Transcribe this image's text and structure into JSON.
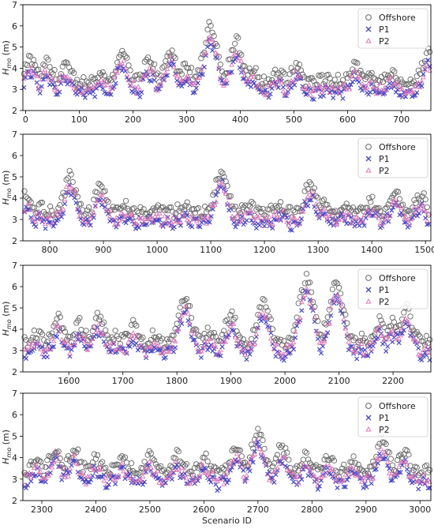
{
  "chart_data": [
    {
      "type": "scatter",
      "xlim": [
        -5,
        755
      ],
      "ylim": [
        2,
        7
      ],
      "xticks": [
        0,
        100,
        200,
        300,
        400,
        500,
        600,
        700
      ],
      "yticks": [
        2,
        3,
        4,
        5,
        6,
        7
      ],
      "ylabel": "H_mo (m)",
      "xlabel": "",
      "legend_position": "top-right",
      "grid": false,
      "peaks": [
        [
          10,
          4.4
        ],
        [
          40,
          4.2
        ],
        [
          75,
          4.1
        ],
        [
          140,
          3.7
        ],
        [
          180,
          4.7
        ],
        [
          230,
          4.3
        ],
        [
          270,
          4.8
        ],
        [
          300,
          4.0
        ],
        [
          345,
          5.9
        ],
        [
          392,
          5.2
        ],
        [
          420,
          3.9
        ],
        [
          470,
          3.8
        ],
        [
          505,
          4.1
        ],
        [
          560,
          3.5
        ],
        [
          615,
          4.1
        ],
        [
          640,
          3.6
        ],
        [
          680,
          3.7
        ],
        [
          750,
          4.7
        ]
      ]
    },
    {
      "type": "scatter",
      "xlim": [
        750,
        1510
      ],
      "ylim": [
        2,
        7
      ],
      "xticks": [
        800,
        900,
        1000,
        1100,
        1200,
        1300,
        1400,
        1500
      ],
      "yticks": [
        2,
        3,
        4,
        5,
        6,
        7
      ],
      "ylabel": "H_mo (m)",
      "xlabel": "",
      "legend_position": "top-right",
      "grid": false,
      "peaks": [
        [
          755,
          4.1
        ],
        [
          780,
          3.6
        ],
        [
          838,
          5.0
        ],
        [
          895,
          4.5
        ],
        [
          940,
          3.6
        ],
        [
          1000,
          3.5
        ],
        [
          1050,
          3.6
        ],
        [
          1120,
          5.2
        ],
        [
          1170,
          3.7
        ],
        [
          1230,
          3.7
        ],
        [
          1285,
          4.6
        ],
        [
          1310,
          3.8
        ],
        [
          1350,
          3.6
        ],
        [
          1400,
          3.8
        ],
        [
          1445,
          4.2
        ],
        [
          1490,
          4.1
        ]
      ]
    },
    {
      "type": "scatter",
      "xlim": [
        1515,
        2270
      ],
      "ylim": [
        2,
        7
      ],
      "xticks": [
        1600,
        1700,
        1800,
        1900,
        2000,
        2100,
        2200
      ],
      "yticks": [
        2,
        3,
        4,
        5,
        6,
        7
      ],
      "ylabel": "H_mo (m)",
      "xlabel": "",
      "legend_position": "top-right",
      "grid": false,
      "peaks": [
        [
          1540,
          3.8
        ],
        [
          1580,
          4.4
        ],
        [
          1620,
          4.2
        ],
        [
          1655,
          4.6
        ],
        [
          1690,
          3.6
        ],
        [
          1720,
          4.1
        ],
        [
          1760,
          3.7
        ],
        [
          1815,
          5.4
        ],
        [
          1860,
          3.8
        ],
        [
          1900,
          4.6
        ],
        [
          1960,
          5.2
        ],
        [
          2040,
          6.3
        ],
        [
          2095,
          6.1
        ],
        [
          2140,
          3.5
        ],
        [
          2175,
          4.3
        ],
        [
          2200,
          4.3
        ],
        [
          2225,
          4.9
        ],
        [
          2260,
          3.4
        ]
      ]
    },
    {
      "type": "scatter",
      "xlim": [
        2265,
        3020
      ],
      "ylim": [
        2,
        7
      ],
      "xticks": [
        2300,
        2400,
        2500,
        2600,
        2700,
        2800,
        2900,
        3000
      ],
      "yticks": [
        2,
        3,
        4,
        5,
        6,
        7
      ],
      "ylabel": "H_mo (m)",
      "xlabel": "Scenario ID",
      "legend_position": "top-right",
      "grid": false,
      "peaks": [
        [
          2290,
          3.8
        ],
        [
          2325,
          4.4
        ],
        [
          2360,
          4.3
        ],
        [
          2400,
          3.9
        ],
        [
          2450,
          3.9
        ],
        [
          2500,
          4.0
        ],
        [
          2550,
          4.0
        ],
        [
          2600,
          3.9
        ],
        [
          2660,
          4.5
        ],
        [
          2700,
          5.1
        ],
        [
          2745,
          4.4
        ],
        [
          2790,
          4.0
        ],
        [
          2830,
          4.0
        ],
        [
          2875,
          3.8
        ],
        [
          2930,
          4.8
        ],
        [
          2970,
          4.2
        ],
        [
          3010,
          3.3
        ]
      ]
    }
  ],
  "series": [
    {
      "name": "Offshore",
      "marker": "circle",
      "color": "#666666",
      "base": 3.35,
      "scale": 1.0
    },
    {
      "name": "P1",
      "marker": "x",
      "color": "#4848c0",
      "base": 2.8,
      "scale": 0.93
    },
    {
      "name": "P2",
      "marker": "triangle",
      "color": "#d977b7",
      "base": 2.95,
      "scale": 0.93
    }
  ]
}
